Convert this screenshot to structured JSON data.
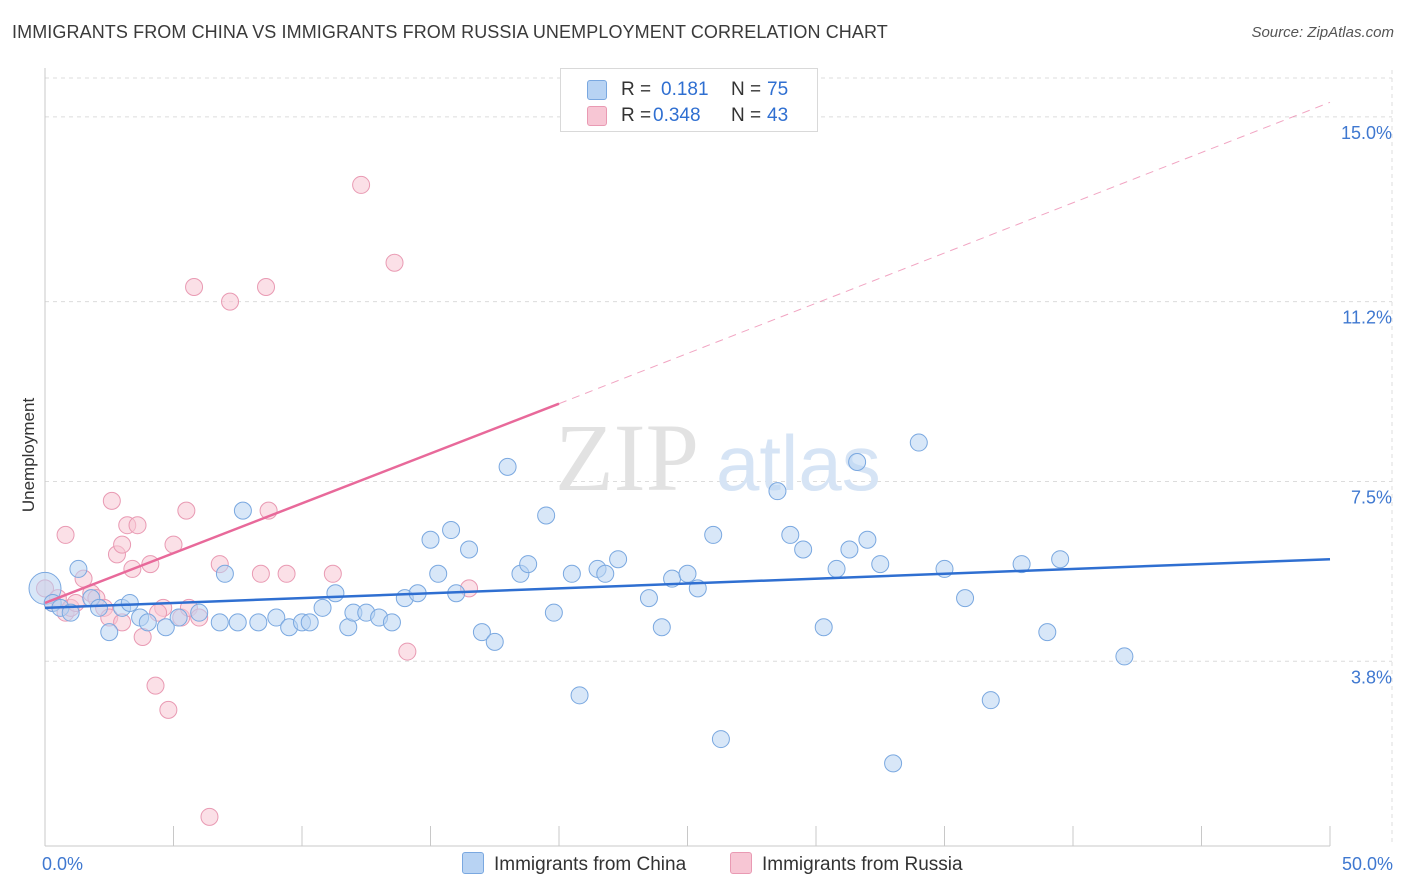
{
  "header": {
    "title": "IMMIGRANTS FROM CHINA VS IMMIGRANTS FROM RUSSIA UNEMPLOYMENT CORRELATION CHART",
    "source": "Source: ZipAtlas.com"
  },
  "legend": {
    "china": {
      "r_label": "R =",
      "r_value": "0.181",
      "n_label": "N =",
      "n_value": "75",
      "name": "Immigrants from China"
    },
    "russia": {
      "r_label": "R =",
      "r_value": "0.348",
      "n_label": "N =",
      "n_value": "43",
      "name": "Immigrants from Russia"
    }
  },
  "colors": {
    "china_fill": "#b8d3f3",
    "china_stroke": "#7aa8e0",
    "china_line": "#2f6fd1",
    "russia_fill": "#f7c6d4",
    "russia_stroke": "#e99ab3",
    "russia_line": "#e8699a",
    "tick_label": "#3f78d0",
    "grid": "#dcdcdc"
  },
  "watermark": {
    "zip": "ZIP",
    "atlas": "atlas"
  },
  "chart_data": {
    "type": "scatter",
    "title": "IMMIGRANTS FROM CHINA VS IMMIGRANTS FROM RUSSIA UNEMPLOYMENT CORRELATION CHART",
    "xlabel": "",
    "ylabel": "Unemployment",
    "xlim": [
      0,
      50
    ],
    "ylim": [
      0,
      15.8
    ],
    "x_tick_labels": [
      "0.0%",
      "50.0%"
    ],
    "y_ticks": [
      3.8,
      7.5,
      11.2,
      15.0
    ],
    "y_tick_labels": [
      "3.8%",
      "7.5%",
      "11.2%",
      "15.0%"
    ],
    "grid": true,
    "legend_position": "top-center",
    "series": [
      {
        "name": "Immigrants from China",
        "R": 0.181,
        "N": 75,
        "trend": {
          "x": [
            0,
            50
          ],
          "y": [
            4.9,
            5.9
          ],
          "dashed_extension": false
        },
        "points": [
          [
            0.0,
            5.3
          ],
          [
            0.3,
            5.0
          ],
          [
            0.6,
            4.9
          ],
          [
            1.0,
            4.8
          ],
          [
            1.3,
            5.7
          ],
          [
            1.8,
            5.1
          ],
          [
            2.1,
            4.9
          ],
          [
            2.5,
            4.4
          ],
          [
            3.0,
            4.9
          ],
          [
            3.3,
            5.0
          ],
          [
            3.7,
            4.7
          ],
          [
            4.0,
            4.6
          ],
          [
            4.7,
            4.5
          ],
          [
            5.2,
            4.7
          ],
          [
            6.0,
            4.8
          ],
          [
            6.8,
            4.6
          ],
          [
            7.0,
            5.6
          ],
          [
            7.5,
            4.6
          ],
          [
            7.7,
            6.9
          ],
          [
            8.3,
            4.6
          ],
          [
            9.0,
            4.7
          ],
          [
            9.5,
            4.5
          ],
          [
            10.0,
            4.6
          ],
          [
            10.3,
            4.6
          ],
          [
            10.8,
            4.9
          ],
          [
            11.3,
            5.2
          ],
          [
            11.8,
            4.5
          ],
          [
            12.0,
            4.8
          ],
          [
            12.5,
            4.8
          ],
          [
            13.0,
            4.7
          ],
          [
            13.5,
            4.6
          ],
          [
            14.0,
            5.1
          ],
          [
            14.5,
            5.2
          ],
          [
            15.0,
            6.3
          ],
          [
            15.3,
            5.6
          ],
          [
            15.8,
            6.5
          ],
          [
            16.0,
            5.2
          ],
          [
            16.5,
            6.1
          ],
          [
            17.0,
            4.4
          ],
          [
            17.5,
            4.2
          ],
          [
            18.0,
            7.8
          ],
          [
            18.5,
            5.6
          ],
          [
            18.8,
            5.8
          ],
          [
            19.5,
            6.8
          ],
          [
            19.8,
            4.8
          ],
          [
            20.5,
            5.6
          ],
          [
            20.8,
            3.1
          ],
          [
            21.5,
            5.7
          ],
          [
            21.8,
            5.6
          ],
          [
            22.3,
            5.9
          ],
          [
            23.5,
            5.1
          ],
          [
            24.0,
            4.5
          ],
          [
            24.4,
            5.5
          ],
          [
            25.0,
            5.6
          ],
          [
            25.4,
            5.3
          ],
          [
            26.0,
            6.4
          ],
          [
            26.3,
            2.2
          ],
          [
            28.5,
            7.3
          ],
          [
            29.0,
            6.4
          ],
          [
            29.5,
            6.1
          ],
          [
            30.3,
            4.5
          ],
          [
            30.8,
            5.7
          ],
          [
            31.3,
            6.1
          ],
          [
            31.6,
            7.9
          ],
          [
            32.0,
            6.3
          ],
          [
            32.5,
            5.8
          ],
          [
            33.0,
            1.7
          ],
          [
            34.0,
            8.3
          ],
          [
            35.0,
            5.7
          ],
          [
            35.8,
            5.1
          ],
          [
            36.8,
            3.0
          ],
          [
            38.0,
            5.8
          ],
          [
            39.0,
            4.4
          ],
          [
            39.5,
            5.9
          ],
          [
            42.0,
            3.9
          ]
        ]
      },
      {
        "name": "Immigrants from Russia",
        "R": 0.348,
        "N": 43,
        "trend": {
          "x": [
            0,
            20
          ],
          "y": [
            5.0,
            9.1
          ],
          "dashed_extension": {
            "x": [
              20,
              50
            ],
            "y": [
              9.1,
              15.3
            ]
          }
        },
        "points": [
          [
            0.0,
            5.3
          ],
          [
            0.3,
            5.0
          ],
          [
            0.5,
            5.1
          ],
          [
            0.8,
            4.8
          ],
          [
            1.0,
            4.9
          ],
          [
            1.2,
            5.0
          ],
          [
            0.8,
            6.4
          ],
          [
            1.5,
            5.5
          ],
          [
            1.8,
            5.2
          ],
          [
            2.0,
            5.1
          ],
          [
            2.3,
            4.9
          ],
          [
            2.5,
            4.7
          ],
          [
            2.6,
            7.1
          ],
          [
            2.8,
            6.0
          ],
          [
            3.0,
            6.2
          ],
          [
            3.2,
            6.6
          ],
          [
            3.4,
            5.7
          ],
          [
            3.6,
            6.6
          ],
          [
            3.8,
            4.3
          ],
          [
            4.1,
            5.8
          ],
          [
            4.3,
            3.3
          ],
          [
            4.6,
            4.9
          ],
          [
            4.8,
            2.8
          ],
          [
            5.0,
            6.2
          ],
          [
            5.3,
            4.7
          ],
          [
            5.6,
            4.9
          ],
          [
            6.0,
            4.7
          ],
          [
            6.4,
            0.6
          ],
          [
            6.8,
            5.8
          ],
          [
            5.5,
            6.9
          ],
          [
            5.8,
            11.5
          ],
          [
            7.2,
            11.2
          ],
          [
            8.4,
            5.6
          ],
          [
            8.6,
            11.5
          ],
          [
            8.7,
            6.9
          ],
          [
            9.4,
            5.6
          ],
          [
            11.2,
            5.6
          ],
          [
            12.3,
            13.6
          ],
          [
            13.6,
            12.0
          ],
          [
            14.1,
            4.0
          ],
          [
            16.5,
            5.3
          ],
          [
            3.0,
            4.6
          ],
          [
            4.4,
            4.8
          ]
        ]
      }
    ]
  }
}
